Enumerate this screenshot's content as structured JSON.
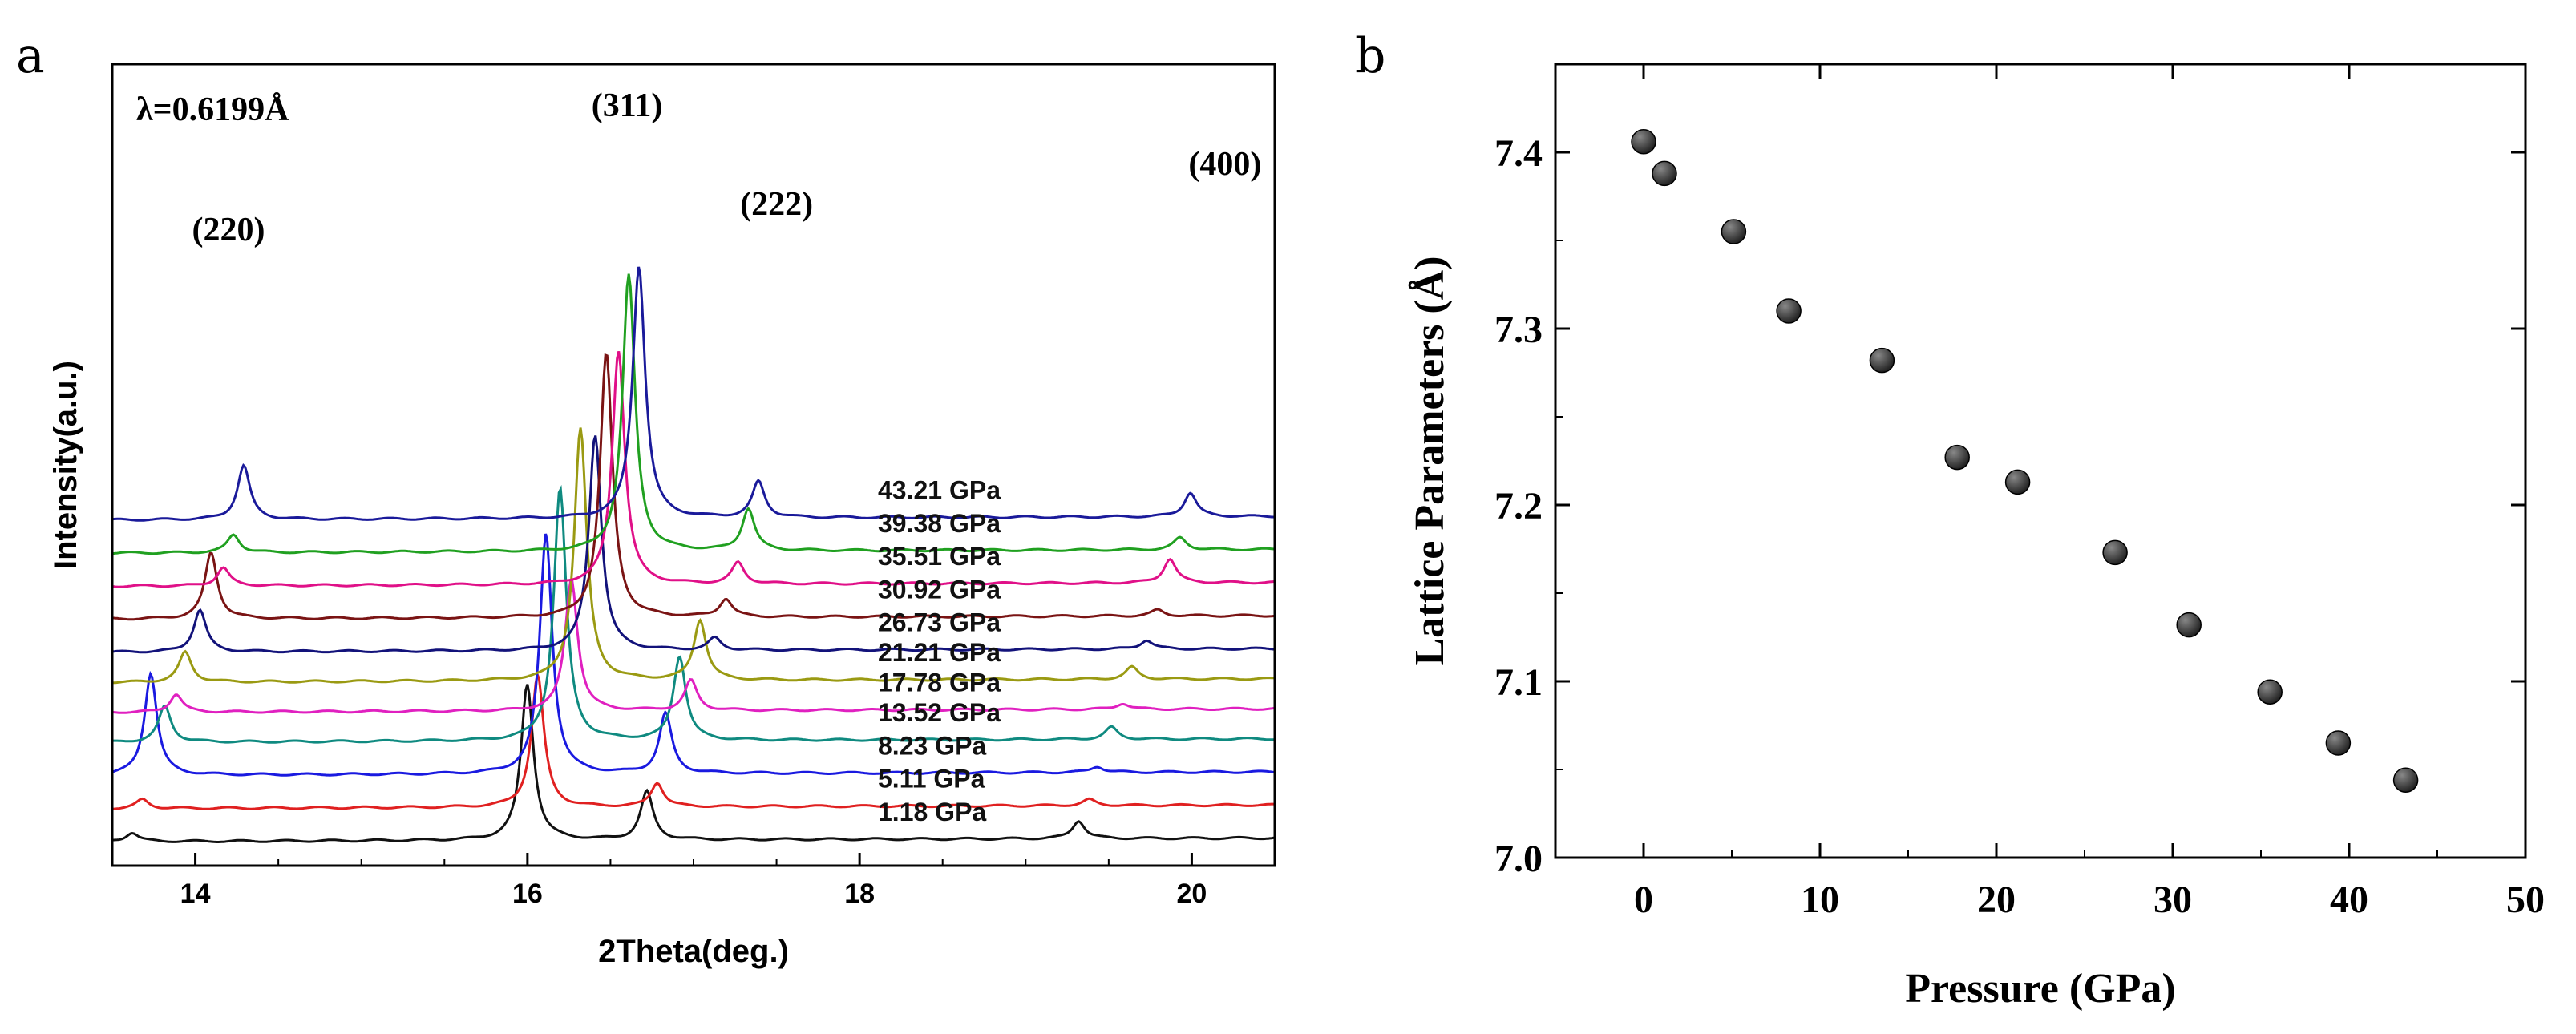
{
  "panels": {
    "a": "a",
    "b": "b"
  },
  "colors": {
    "axis": "#000000",
    "marker_fill": "#222222",
    "marker_highlight": "#888888"
  },
  "chart_data": [
    {
      "id": "a",
      "type": "line",
      "title": "",
      "xlabel": "2Theta(deg.)",
      "ylabel": "Intensity(a.u.)",
      "xlim": [
        13.5,
        20.5
      ],
      "xticks": [
        14,
        16,
        18,
        20
      ],
      "tick_labels": [
        "14",
        "16",
        "18",
        "20"
      ],
      "wavelength_label": "λ=0.6199Å",
      "hkl_labels": [
        {
          "text": "(220)",
          "x": 14.2
        },
        {
          "text": "(311)",
          "x": 16.6
        },
        {
          "text": "(222)",
          "x": 17.5
        },
        {
          "text": "(400)",
          "x": 20.2
        }
      ],
      "baseline_peak_positions_deg": [
        13.6,
        15.98,
        16.7,
        19.3
      ],
      "peak_shift_per_gpa": 0.016,
      "peak_width_deg": 0.045,
      "series": [
        {
          "name": "1.18 GPa",
          "pressure": 1.18,
          "color": "#111111",
          "offset": 0.0,
          "peaks": [
            0.15,
            2.6,
            0.8,
            0.3
          ]
        },
        {
          "name": "5.11 GPa",
          "pressure": 5.11,
          "color": "#e02020",
          "offset": 0.55,
          "peaks": [
            0.15,
            2.2,
            0.4,
            0.1
          ]
        },
        {
          "name": "8.23 GPa",
          "pressure": 8.23,
          "color": "#1a1ae0",
          "offset": 1.1,
          "peaks": [
            1.7,
            4.0,
            1.0,
            0.1
          ]
        },
        {
          "name": "13.52 GPa",
          "pressure": 13.52,
          "color": "#0f8a80",
          "offset": 1.65,
          "peaks": [
            0.6,
            4.2,
            1.4,
            0.2
          ]
        },
        {
          "name": "17.78 GPa",
          "pressure": 17.78,
          "color": "#e020c0",
          "offset": 2.15,
          "peaks": [
            0.3,
            2.2,
            0.5,
            0.1
          ]
        },
        {
          "name": "21.21 GPa",
          "pressure": 21.21,
          "color": "#9a9a12",
          "offset": 2.65,
          "peaks": [
            0.5,
            4.2,
            1.0,
            0.2
          ]
        },
        {
          "name": "26.73 GPa",
          "pressure": 26.73,
          "color": "#12127a",
          "offset": 3.15,
          "peaks": [
            0.7,
            3.6,
            0.2,
            0.15
          ]
        },
        {
          "name": "30.92 GPa",
          "pressure": 30.92,
          "color": "#7a1414",
          "offset": 3.7,
          "peaks": [
            1.1,
            4.4,
            0.3,
            0.1
          ]
        },
        {
          "name": "35.51 GPa",
          "pressure": 35.51,
          "color": "#e01088",
          "offset": 4.25,
          "peaks": [
            0.3,
            3.9,
            0.35,
            0.4
          ]
        },
        {
          "name": "39.38 GPa",
          "pressure": 39.38,
          "color": "#20a020",
          "offset": 4.8,
          "peaks": [
            0.3,
            4.6,
            0.7,
            0.2
          ]
        },
        {
          "name": "43.21 GPa",
          "pressure": 43.21,
          "color": "#1a1a9a",
          "offset": 5.35,
          "peaks": [
            0.9,
            4.2,
            0.6,
            0.4
          ]
        }
      ]
    },
    {
      "id": "b",
      "type": "scatter",
      "title": "",
      "xlabel": "Pressure (GPa)",
      "ylabel": "Lattice Parameters (Å)",
      "xlim": [
        -5,
        50
      ],
      "ylim": [
        7.0,
        7.45
      ],
      "xticks": [
        0,
        10,
        20,
        30,
        40,
        50
      ],
      "yticks": [
        7.0,
        7.1,
        7.2,
        7.3,
        7.4
      ],
      "xtick_labels": [
        "0",
        "10",
        "20",
        "30",
        "40",
        "50"
      ],
      "ytick_labels": [
        "7.0",
        "7.1",
        "7.2",
        "7.3",
        "7.4"
      ],
      "x": [
        0,
        1.18,
        5.11,
        8.23,
        13.52,
        17.78,
        21.21,
        26.73,
        30.92,
        35.51,
        39.38,
        43.21
      ],
      "y": [
        7.406,
        7.388,
        7.355,
        7.31,
        7.282,
        7.227,
        7.213,
        7.173,
        7.132,
        7.094,
        7.065,
        7.044
      ]
    }
  ]
}
